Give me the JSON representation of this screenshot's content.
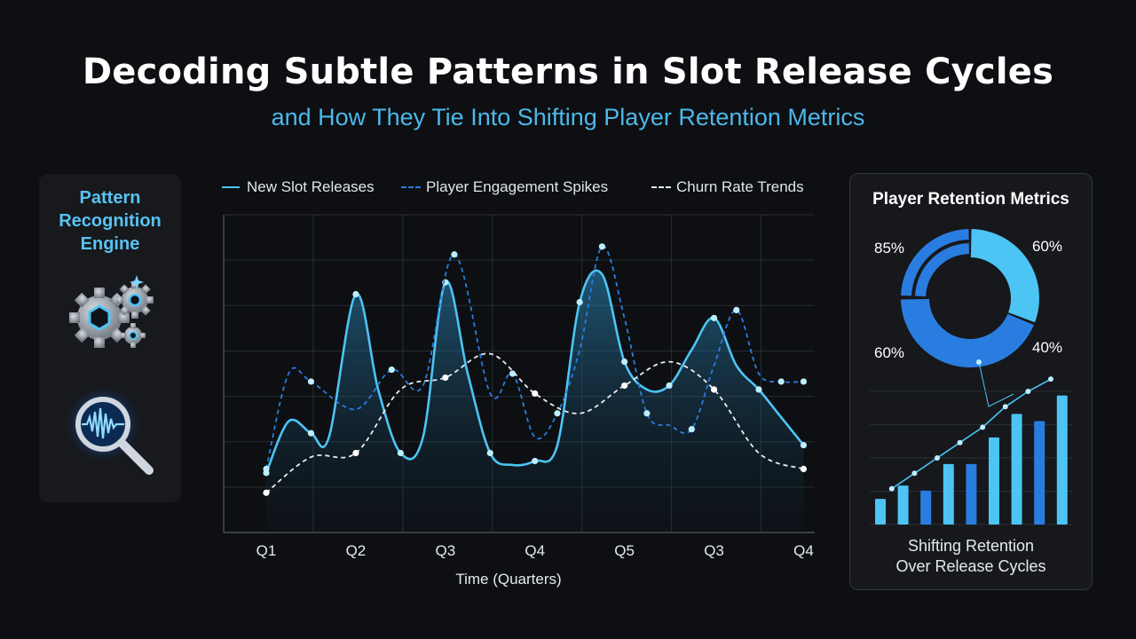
{
  "title": "Decoding Subtle Patterns in Slot Release Cycles",
  "subtitle": "and How They Tie Into Shifting Player Retention Metrics",
  "engine_panel": {
    "title_lines": [
      "Pattern",
      "Recognition",
      "Engine"
    ],
    "icons": [
      "gears-icon",
      "magnifier-waveform-icon"
    ]
  },
  "colors": {
    "background": "#0d0f12",
    "accent_light": "#4cc4f4",
    "accent_dark": "#2a7de0",
    "subtitle": "#4cb8ea",
    "churn": "#e8ecf0"
  },
  "chart_data": [
    {
      "type": "line",
      "title": "",
      "xlabel": "Time (Quarters)",
      "ylabel": "",
      "categories": [
        "Q1",
        "Q2",
        "Q3",
        "Q4",
        "Q5",
        "Q3",
        "Q4"
      ],
      "grid": true,
      "legend_position": "top",
      "series": [
        {
          "name": "New Slot Releases",
          "style": "solid",
          "color": "#4cc4f4",
          "x": [
            0,
            0.25,
            0.5,
            0.7,
            1.0,
            1.25,
            1.5,
            1.75,
            2.0,
            2.25,
            2.5,
            2.75,
            3.0,
            3.25,
            3.5,
            3.75,
            4.0,
            4.25,
            4.5,
            4.75,
            5.0,
            5.25,
            5.5,
            5.75,
            6.0
          ],
          "values": [
            1.5,
            2.8,
            2.5,
            2.4,
            6.0,
            3.6,
            2.0,
            2.4,
            6.3,
            4.0,
            2.0,
            1.7,
            1.8,
            2.2,
            5.8,
            6.5,
            4.3,
            3.6,
            3.7,
            4.6,
            5.4,
            4.2,
            3.6,
            2.9,
            2.2
          ]
        },
        {
          "name": "Player Engagement Spikes",
          "style": "dashed",
          "color": "#2a7de0",
          "x": [
            0,
            0.25,
            0.5,
            1.0,
            1.4,
            1.75,
            2.1,
            2.5,
            2.75,
            3.0,
            3.25,
            3.5,
            3.75,
            4.0,
            4.25,
            4.5,
            4.75,
            5.0,
            5.25,
            5.5,
            5.75,
            6.0
          ],
          "values": [
            1.6,
            4.0,
            3.8,
            3.1,
            4.1,
            3.7,
            7.0,
            3.5,
            4.0,
            2.4,
            3.0,
            4.6,
            7.2,
            5.4,
            3.0,
            2.7,
            2.6,
            4.2,
            5.6,
            4.0,
            3.8,
            3.8
          ]
        },
        {
          "name": "Churn Rate Trends",
          "style": "dashed",
          "color": "#e8ecf0",
          "x": [
            0,
            0.5,
            1.0,
            1.5,
            2.0,
            2.5,
            3.0,
            3.5,
            4.0,
            4.5,
            5.0,
            5.5,
            6.0
          ],
          "values": [
            1.0,
            1.9,
            2.0,
            3.6,
            3.9,
            4.5,
            3.5,
            3.0,
            3.7,
            4.3,
            3.6,
            2.0,
            1.6
          ]
        }
      ]
    },
    {
      "type": "pie",
      "title": "Player Retention Metrics",
      "labels": [
        "85%",
        "60%",
        "40%",
        "60%"
      ],
      "slices": [
        {
          "label": "60%",
          "value": 31,
          "color": "#4cc4f4"
        },
        {
          "label": "40%",
          "value": 44,
          "color": "#2a7de0"
        },
        {
          "label": "60%",
          "value": 25,
          "color": "#2a7de0"
        }
      ]
    },
    {
      "type": "bar",
      "title": "Shifting Retention Over Release Cycles",
      "values": [
        0.25,
        0.38,
        0.33,
        0.59,
        0.59,
        0.85,
        1.08,
        1.01,
        1.26
      ],
      "bar_colors": [
        "#4cc4f4",
        "#4cc4f4",
        "#2a7de0",
        "#4cc4f4",
        "#2a7de0",
        "#4cc4f4",
        "#4cc4f4",
        "#2a7de0",
        "#4cc4f4"
      ],
      "trend_line": [
        0.35,
        0.5,
        0.65,
        0.8,
        0.95,
        1.15,
        1.3,
        1.42
      ]
    }
  ]
}
